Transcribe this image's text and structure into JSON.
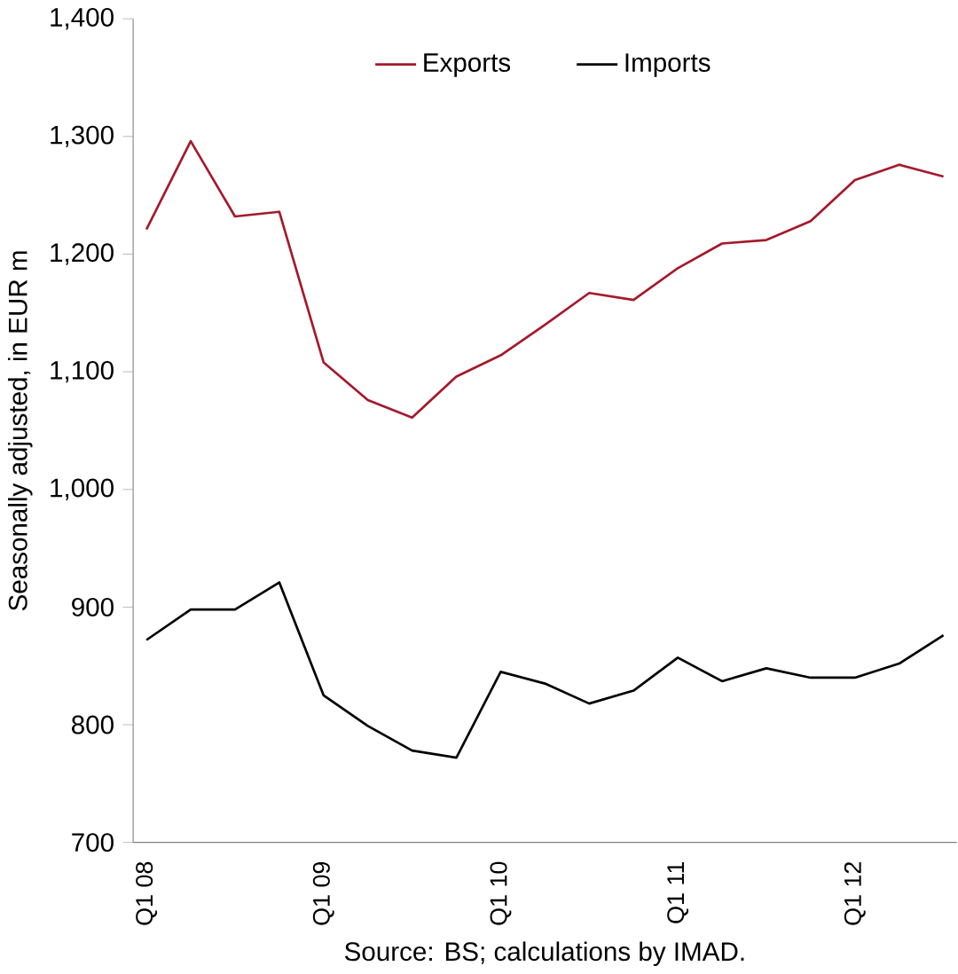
{
  "chart_data": {
    "type": "line",
    "ylabel": "Seasonally adjusted, in EUR m",
    "categories": [
      "Q1 08",
      null,
      null,
      null,
      "Q1 09",
      null,
      null,
      null,
      "Q1 10",
      null,
      null,
      null,
      "Q1 11",
      null,
      null,
      null,
      "Q1 12",
      null,
      null
    ],
    "series": [
      {
        "name": "Exports",
        "color": "#a5192b",
        "values": [
          1221,
          1296,
          1232,
          1236,
          1108,
          1076,
          1061,
          1096,
          1114,
          1140,
          1167,
          1161,
          1188,
          1209,
          1212,
          1228,
          1263,
          1276,
          1266
        ]
      },
      {
        "name": "Imports",
        "color": "#000000",
        "values": [
          872,
          898,
          898,
          921,
          825,
          799,
          778,
          772,
          845,
          835,
          818,
          829,
          857,
          837,
          848,
          840,
          840,
          852,
          876
        ]
      }
    ],
    "ylim": [
      700,
      1400
    ],
    "yticks": [
      {
        "value": 700,
        "label": "700"
      },
      {
        "value": 800,
        "label": "800"
      },
      {
        "value": 900,
        "label": "900"
      },
      {
        "value": 1000,
        "label": "1,000"
      },
      {
        "value": 1100,
        "label": "1,100"
      },
      {
        "value": 1200,
        "label": "1,200"
      },
      {
        "value": 1300,
        "label": "1,300"
      },
      {
        "value": 1400,
        "label": "1,400"
      }
    ],
    "legend": "top",
    "grid": false,
    "marker": "none",
    "line_style": "solid",
    "annotations": [
      "Source: BS; calculations by IMAD."
    ]
  }
}
